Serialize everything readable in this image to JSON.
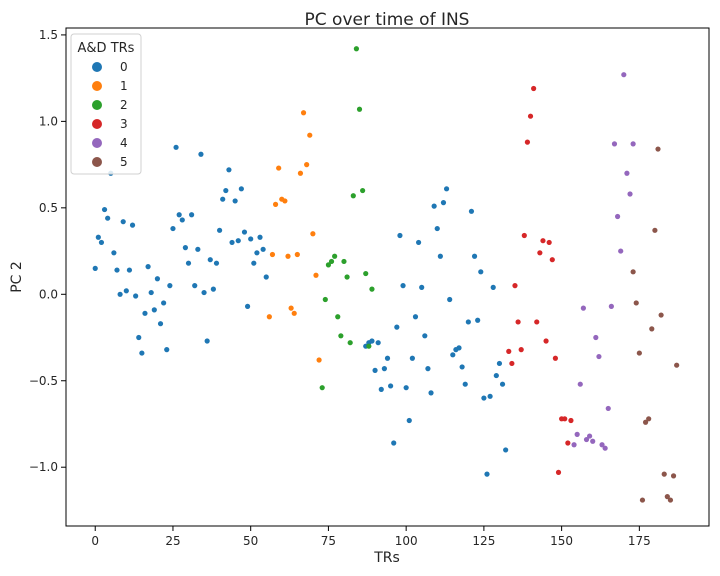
{
  "chart_data": {
    "type": "scatter",
    "title": "PC over time of INS",
    "xlabel": "TRs",
    "ylabel": "PC 2",
    "xlim": [
      -9.4,
      197.4
    ],
    "ylim": [
      -1.34,
      1.54
    ],
    "xticks": [
      0,
      25,
      50,
      75,
      100,
      125,
      150,
      175
    ],
    "yticks": [
      -1.0,
      -0.5,
      0.0,
      0.5,
      1.0,
      1.5
    ],
    "ytick_labels": [
      "−1.0",
      "−0.5",
      "0.0",
      "0.5",
      "1.0",
      "1.5"
    ],
    "grid": false,
    "legend": {
      "title": "A&D TRs",
      "placement": "top-left",
      "entries": [
        "0",
        "1",
        "2",
        "3",
        "4",
        "5"
      ]
    },
    "colors": [
      "#1f77b4",
      "#ff7f0e",
      "#2ca02c",
      "#d62728",
      "#9467bd",
      "#8c564b"
    ],
    "series": [
      {
        "name": "0",
        "points": [
          [
            0,
            0.15
          ],
          [
            1,
            0.33
          ],
          [
            2,
            0.3
          ],
          [
            3,
            0.49
          ],
          [
            4,
            0.44
          ],
          [
            5,
            0.7
          ],
          [
            6,
            0.24
          ],
          [
            7,
            0.14
          ],
          [
            8,
            0.0
          ],
          [
            9,
            0.42
          ],
          [
            10,
            0.02
          ],
          [
            11,
            0.14
          ],
          [
            12,
            0.4
          ],
          [
            13,
            -0.01
          ],
          [
            14,
            -0.25
          ],
          [
            15,
            -0.34
          ],
          [
            16,
            -0.11
          ],
          [
            17,
            0.16
          ],
          [
            18,
            0.01
          ],
          [
            19,
            -0.09
          ],
          [
            20,
            0.09
          ],
          [
            21,
            -0.17
          ],
          [
            22,
            -0.05
          ],
          [
            23,
            -0.32
          ],
          [
            24,
            0.05
          ],
          [
            25,
            0.38
          ],
          [
            26,
            0.85
          ],
          [
            27,
            0.46
          ],
          [
            28,
            0.43
          ],
          [
            29,
            0.27
          ],
          [
            30,
            0.18
          ],
          [
            31,
            0.46
          ],
          [
            32,
            0.05
          ],
          [
            33,
            0.26
          ],
          [
            34,
            0.81
          ],
          [
            35,
            0.01
          ],
          [
            36,
            -0.27
          ],
          [
            37,
            0.2
          ],
          [
            38,
            0.03
          ],
          [
            39,
            0.18
          ],
          [
            40,
            0.37
          ],
          [
            41,
            0.55
          ],
          [
            42,
            0.6
          ],
          [
            43,
            0.72
          ],
          [
            44,
            0.3
          ],
          [
            45,
            0.54
          ],
          [
            46,
            0.31
          ],
          [
            47,
            0.61
          ],
          [
            48,
            0.36
          ],
          [
            49,
            -0.07
          ],
          [
            50,
            0.32
          ],
          [
            51,
            0.18
          ],
          [
            52,
            0.24
          ],
          [
            53,
            0.33
          ],
          [
            54,
            0.26
          ],
          [
            55,
            0.1
          ],
          [
            87,
            -0.3
          ],
          [
            88,
            -0.28
          ],
          [
            89,
            -0.27
          ],
          [
            90,
            -0.44
          ],
          [
            91,
            -0.28
          ],
          [
            92,
            -0.55
          ],
          [
            93,
            -0.43
          ],
          [
            94,
            -0.37
          ],
          [
            95,
            -0.53
          ],
          [
            96,
            -0.86
          ],
          [
            97,
            -0.19
          ],
          [
            98,
            0.34
          ],
          [
            99,
            0.05
          ],
          [
            100,
            -0.54
          ],
          [
            101,
            -0.73
          ],
          [
            102,
            -0.37
          ],
          [
            103,
            -0.13
          ],
          [
            104,
            0.3
          ],
          [
            105,
            0.04
          ],
          [
            106,
            -0.24
          ],
          [
            107,
            -0.43
          ],
          [
            108,
            -0.57
          ],
          [
            109,
            0.51
          ],
          [
            110,
            0.38
          ],
          [
            111,
            0.22
          ],
          [
            112,
            0.53
          ],
          [
            113,
            0.61
          ],
          [
            114,
            -0.03
          ],
          [
            115,
            -0.35
          ],
          [
            116,
            -0.32
          ],
          [
            117,
            -0.31
          ],
          [
            118,
            -0.42
          ],
          [
            119,
            -0.52
          ],
          [
            120,
            -0.16
          ],
          [
            121,
            0.48
          ],
          [
            122,
            0.22
          ],
          [
            123,
            -0.15
          ],
          [
            124,
            0.13
          ],
          [
            125,
            -0.6
          ],
          [
            126,
            -1.04
          ],
          [
            127,
            -0.59
          ],
          [
            128,
            0.04
          ],
          [
            129,
            -0.47
          ],
          [
            130,
            -0.4
          ],
          [
            131,
            -0.52
          ],
          [
            132,
            -0.9
          ]
        ]
      },
      {
        "name": "1",
        "points": [
          [
            56,
            -0.13
          ],
          [
            57,
            0.23
          ],
          [
            58,
            0.52
          ],
          [
            59,
            0.73
          ],
          [
            60,
            0.55
          ],
          [
            61,
            0.54
          ],
          [
            62,
            0.22
          ],
          [
            63,
            -0.08
          ],
          [
            64,
            -0.11
          ],
          [
            65,
            0.23
          ],
          [
            66,
            0.7
          ],
          [
            67,
            1.05
          ],
          [
            68,
            0.75
          ],
          [
            69,
            0.92
          ],
          [
            70,
            0.35
          ],
          [
            71,
            0.11
          ],
          [
            72,
            -0.38
          ]
        ]
      },
      {
        "name": "2",
        "points": [
          [
            73,
            -0.54
          ],
          [
            74,
            -0.03
          ],
          [
            75,
            0.17
          ],
          [
            76,
            0.19
          ],
          [
            77,
            0.22
          ],
          [
            78,
            -0.13
          ],
          [
            79,
            -0.24
          ],
          [
            80,
            0.19
          ],
          [
            81,
            0.1
          ],
          [
            82,
            -0.28
          ],
          [
            83,
            0.57
          ],
          [
            84,
            1.42
          ],
          [
            85,
            1.07
          ],
          [
            86,
            0.6
          ],
          [
            87,
            0.12
          ],
          [
            88,
            -0.3
          ],
          [
            89,
            0.03
          ]
        ]
      },
      {
        "name": "3",
        "points": [
          [
            133,
            -0.33
          ],
          [
            134,
            -0.4
          ],
          [
            135,
            0.05
          ],
          [
            136,
            -0.16
          ],
          [
            137,
            -0.32
          ],
          [
            138,
            0.34
          ],
          [
            139,
            0.88
          ],
          [
            140,
            1.03
          ],
          [
            141,
            1.19
          ],
          [
            142,
            -0.16
          ],
          [
            143,
            0.24
          ],
          [
            144,
            0.31
          ],
          [
            145,
            -0.27
          ],
          [
            146,
            0.3
          ],
          [
            147,
            0.2
          ],
          [
            148,
            -0.37
          ],
          [
            149,
            -1.03
          ],
          [
            150,
            -0.72
          ],
          [
            151,
            -0.72
          ],
          [
            152,
            -0.86
          ],
          [
            153,
            -0.73
          ]
        ]
      },
      {
        "name": "4",
        "points": [
          [
            154,
            -0.87
          ],
          [
            155,
            -0.81
          ],
          [
            156,
            -0.52
          ],
          [
            157,
            -0.08
          ],
          [
            158,
            -0.84
          ],
          [
            159,
            -0.82
          ],
          [
            160,
            -0.85
          ],
          [
            161,
            -0.25
          ],
          [
            162,
            -0.36
          ],
          [
            163,
            -0.87
          ],
          [
            164,
            -0.89
          ],
          [
            165,
            -0.66
          ],
          [
            166,
            -0.07
          ],
          [
            167,
            0.87
          ],
          [
            168,
            0.45
          ],
          [
            169,
            0.25
          ],
          [
            170,
            1.27
          ],
          [
            171,
            0.7
          ],
          [
            172,
            0.58
          ],
          [
            173,
            0.87
          ]
        ]
      },
      {
        "name": "5",
        "points": [
          [
            173,
            0.13
          ],
          [
            174,
            -0.05
          ],
          [
            175,
            -0.34
          ],
          [
            176,
            -1.19
          ],
          [
            177,
            -0.74
          ],
          [
            178,
            -0.72
          ],
          [
            179,
            -0.2
          ],
          [
            180,
            0.37
          ],
          [
            181,
            0.84
          ],
          [
            182,
            -0.12
          ],
          [
            183,
            -1.04
          ],
          [
            184,
            -1.17
          ],
          [
            185,
            -1.19
          ],
          [
            186,
            -1.05
          ],
          [
            187,
            -0.41
          ]
        ]
      }
    ]
  }
}
